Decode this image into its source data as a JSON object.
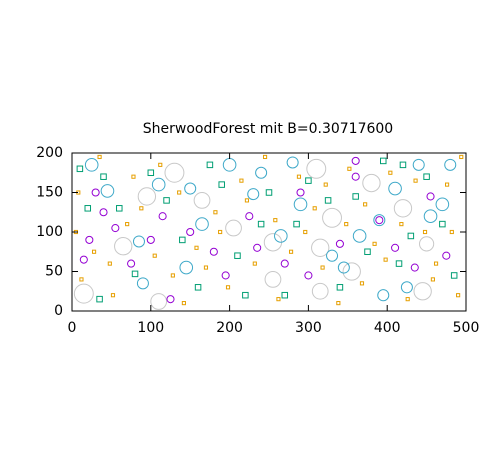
{
  "chart_data": {
    "type": "scatter",
    "title": "SherwoodForest mit B=0.30717600",
    "xlim": [
      0,
      500
    ],
    "ylim": [
      0,
      200
    ],
    "xticks": [
      0,
      100,
      200,
      300,
      400,
      500
    ],
    "yticks": [
      0,
      50,
      100,
      150,
      200
    ],
    "grid": false,
    "series": [
      {
        "color": "#c8c8c8",
        "marker": "circle",
        "x": [
          15,
          65,
          95,
          130,
          165,
          205,
          255,
          315,
          310,
          330,
          355,
          380,
          420,
          445,
          315,
          110,
          255,
          450
        ],
        "y": [
          22,
          82,
          145,
          175,
          140,
          105,
          87,
          80,
          180,
          118,
          50,
          162,
          130,
          25,
          25,
          12,
          40,
          85
        ],
        "r": [
          12,
          11,
          11,
          12,
          10,
          10,
          11,
          11,
          12,
          12,
          11,
          11,
          11,
          11,
          10,
          10,
          10,
          9
        ]
      },
      {
        "color": "#3fa9c9",
        "marker": "circle",
        "x": [
          25,
          45,
          85,
          90,
          110,
          145,
          150,
          165,
          200,
          230,
          240,
          265,
          280,
          290,
          330,
          345,
          365,
          390,
          410,
          425,
          440,
          455,
          470,
          480,
          395
        ],
        "y": [
          185,
          152,
          88,
          35,
          160,
          55,
          155,
          110,
          185,
          148,
          175,
          95,
          188,
          135,
          70,
          55,
          95,
          115,
          155,
          30,
          185,
          120,
          135,
          185,
          20
        ],
        "r": [
          8,
          8,
          7,
          7,
          8,
          8,
          7,
          8,
          8,
          7,
          7,
          8,
          7,
          8,
          7,
          7,
          8,
          7,
          8,
          7,
          7,
          8,
          8,
          7,
          7
        ]
      },
      {
        "color": "#9400d3",
        "marker": "circle",
        "x": [
          15,
          22,
          30,
          40,
          55,
          75,
          100,
          115,
          125,
          150,
          180,
          195,
          225,
          235,
          270,
          290,
          300,
          340,
          360,
          360,
          390,
          410,
          435,
          455,
          475
        ],
        "y": [
          65,
          90,
          150,
          125,
          105,
          60,
          90,
          120,
          15,
          100,
          75,
          45,
          120,
          80,
          60,
          150,
          45,
          85,
          190,
          170,
          115,
          80,
          55,
          145,
          70
        ],
        "r": [
          4.5,
          4.5,
          4.5,
          4.5,
          4.5,
          4.5,
          4.5,
          4.5,
          4.5,
          4.5,
          4.5,
          4.5,
          4.5,
          4.5,
          4.5,
          4.5,
          4.5,
          4.5,
          4.5,
          4.5,
          4.5,
          4.5,
          4.5,
          4.5,
          4.5
        ]
      },
      {
        "color": "#009e73",
        "marker": "square",
        "x": [
          10,
          20,
          40,
          60,
          80,
          100,
          120,
          140,
          160,
          175,
          190,
          210,
          220,
          240,
          250,
          270,
          285,
          300,
          325,
          340,
          360,
          375,
          395,
          415,
          430,
          450,
          470,
          485,
          420,
          35
        ],
        "y": [
          180,
          130,
          170,
          130,
          47,
          175,
          140,
          90,
          30,
          185,
          160,
          70,
          20,
          110,
          150,
          20,
          110,
          165,
          140,
          30,
          145,
          75,
          190,
          60,
          95,
          170,
          110,
          45,
          185,
          15
        ],
        "r": [
          3.5,
          3.5,
          3.5,
          3.5,
          3.5,
          3.5,
          3.5,
          3.5,
          3.5,
          3.5,
          3.5,
          3.5,
          3.5,
          3.5,
          3.5,
          3.5,
          3.5,
          3.5,
          3.5,
          3.5,
          3.5,
          3.5,
          3.5,
          3.5,
          3.5,
          3.5,
          3.5,
          3.5,
          3.5,
          3.5
        ]
      },
      {
        "color": "#e69f00",
        "marker": "square",
        "x": [
          5,
          12,
          28,
          35,
          48,
          52,
          70,
          78,
          88,
          105,
          112,
          128,
          136,
          142,
          158,
          170,
          182,
          188,
          198,
          215,
          222,
          232,
          245,
          258,
          262,
          278,
          288,
          296,
          308,
          318,
          322,
          338,
          348,
          352,
          368,
          372,
          384,
          398,
          404,
          418,
          426,
          436,
          448,
          458,
          462,
          476,
          482,
          490,
          494,
          8
        ],
        "y": [
          100,
          40,
          75,
          195,
          60,
          20,
          110,
          170,
          130,
          70,
          185,
          45,
          150,
          10,
          80,
          55,
          125,
          100,
          30,
          165,
          140,
          60,
          195,
          115,
          15,
          75,
          170,
          100,
          130,
          55,
          160,
          10,
          110,
          180,
          35,
          135,
          85,
          65,
          175,
          110,
          15,
          165,
          100,
          40,
          60,
          160,
          100,
          20,
          195,
          150
        ],
        "r": [
          2,
          2,
          2,
          2,
          2,
          2,
          2,
          2,
          2,
          2,
          2,
          2,
          2,
          2,
          2,
          2,
          2,
          2,
          2,
          2,
          2,
          2,
          2,
          2,
          2,
          2,
          2,
          2,
          2,
          2,
          2,
          2,
          2,
          2,
          2,
          2,
          2,
          2,
          2,
          2,
          2,
          2,
          2,
          2,
          2,
          2,
          2,
          2,
          2,
          2
        ]
      }
    ]
  }
}
